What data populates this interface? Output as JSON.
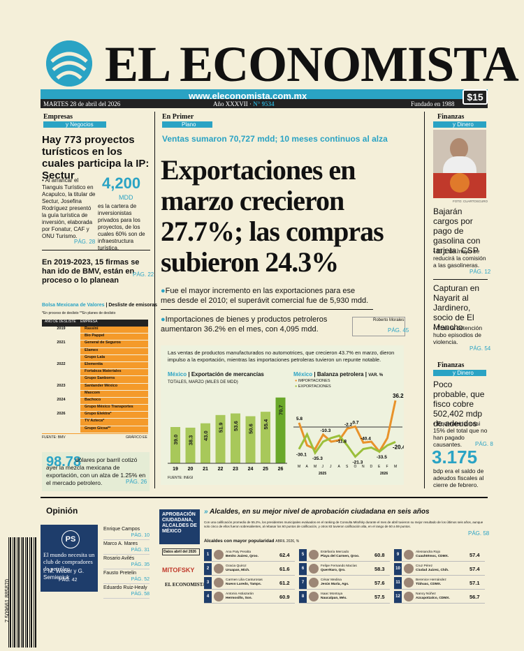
{
  "masthead": {
    "title": "EL ECONOMISTA",
    "url": "www.eleconomista.com.mx",
    "date": "MARTES 28 de abril del 2026",
    "issue_label": "Año XXXVII",
    "issue_number": "N° 9534",
    "founded": "Fundado en 1988",
    "price": "$15"
  },
  "left": {
    "section": "Empresas",
    "section_tag": "y Negocios",
    "headline": "Hay 773 proyectos turísticos en los cuales participa la IP: Sectur",
    "body": "Al arrancar el Tianguis Turístico en Acapulco, la titular de Sectur, Josefina Rodríguez presentó la guía turística de inversión, elaborada por Fonatur, CAF y ONU Turismo.",
    "big_number": "4,200",
    "big_unit": "MDD",
    "number_text": "es la cartera de inversionistas privados para los proyectos, de los cuales 60% son de infraestructura turística.",
    "page1": "PÁG. 28",
    "headline2": "En 2019-2023, 15 firmas se han ido de BMV, están en proceso o lo planean",
    "page2": "PÁG. 22",
    "table_title": "Bolsa Mexicana de Valores",
    "table_sub": "Desliste de emisoras",
    "table_note": "*En proceso de deslisto **En planes de deslisto",
    "col_year": "AÑO DE DESLISTE",
    "col_company": "EMPRESA",
    "years": [
      "2019",
      "2021",
      "2022",
      "2023",
      "2024",
      "2026"
    ],
    "companies": [
      "Rassini",
      "Bio Pappel",
      "General de Seguros",
      "Elamex",
      "Grupo Lala",
      "Elementia",
      "Fortaleza Materiales",
      "Grupo Sanborns",
      "Santander México",
      "Maxcom",
      "Bachoco",
      "Grupo México Transportes",
      "Grupo Elektra*",
      "TV Azteca*",
      "Grupo Gicsa**"
    ],
    "source": "FUENTE: BMV",
    "graphic": "GRÁFICO EE",
    "oil_number": "98.78",
    "oil_text": "dólares por barril cotizó ayer la mezcla mexicana de exportación, con un alza de 1.25% en el mercado petrolero.",
    "page3": "PÁG. 26"
  },
  "center": {
    "section": "En Primer",
    "section_tag": "Plano",
    "kicker": "Ventas sumaron 70,727 mdd; 10 meses continuos al alza",
    "headline": "Exportaciones en marzo crecieron 27.7%; las compras subieron 24.3%",
    "bullet1": "Fue el mayor incremento en las exportaciones para ese mes desde el 2010; el superávit comercial fue de 5,930 mdd.",
    "bullet2": "Importaciones de bienes y productos petroleros aumentaron 36.2% en el mes, con 4,095 mdd.",
    "byline": "Roberto Morales",
    "page": "PÁG. 45",
    "chart_intro": "Las ventas de productos manufacturados no automotrices, que crecieron 43.7% en marzo, dieron impulso a la exportación, mientras las importaciones petroleras tuvieron un repunte notable."
  },
  "chart_data": [
    {
      "type": "bar",
      "title": "Exportación de mercancías",
      "title_prefix": "México",
      "subtitle": "TOTALES, MARZO (MILES DE MDD)",
      "categories": [
        "19",
        "20",
        "21",
        "22",
        "23",
        "24",
        "25",
        "26"
      ],
      "values": [
        39.0,
        38.3,
        43.0,
        51.9,
        53.6,
        50.6,
        55.4,
        70.7
      ],
      "value_labels": [
        "39.0",
        "38.3",
        "43.0",
        "51.9",
        "53.6",
        "50.6",
        "55.4",
        "70.7"
      ],
      "source": "FUENTE: INEGI"
    },
    {
      "type": "line",
      "title": "Balanza petrolera",
      "title_prefix": "México",
      "subtitle": "VAR. %",
      "x": [
        "M",
        "A",
        "M",
        "J",
        "J",
        "A",
        "S",
        "O",
        "N",
        "D",
        "E",
        "F",
        "M"
      ],
      "year_labels": [
        "2025",
        "2026"
      ],
      "series": [
        {
          "name": "IMPORTACIONES",
          "color": "#e8922a",
          "values": [
            5.8,
            -25,
            -30,
            -10.3,
            -20,
            -18,
            -2.2,
            0.7,
            -21.3,
            -20,
            -33.5,
            -15,
            36.2
          ]
        },
        {
          "name": "EXPORTACIONES",
          "color": "#9bbf3a",
          "values": [
            -30.1,
            -10,
            -35.3,
            -20,
            -15,
            -11.8,
            -25,
            -40.4,
            -30,
            -28,
            -33.5,
            -25,
            -20.4
          ]
        }
      ],
      "labels": [
        "5.8",
        "-30.1",
        "-35.3",
        "-10.3",
        "-11.8",
        "-2.2",
        "0.7",
        "-40.4",
        "-21.3",
        "-33.5",
        "36.2",
        "-20.4"
      ]
    }
  ],
  "right": {
    "section": "Finanzas",
    "section_tag": "y Dinero",
    "photo_credit": "FOTO: CUARTOSCURO",
    "headline1": "Bajarán cargos por pago de gasolina con tarjeta: CSP",
    "body1": "El 1 de mayo se reducirá la comisión a las gasolineras.",
    "page1": "PÁG. 12",
    "headline2": "Capturan en Nayarit al Jardinero, socio de El Mencho",
    "body2": "Tras la detención hubo episodios de violencia.",
    "page2": "PÁG. 54",
    "section2": "Finanzas",
    "section2_tag": "y Dinero",
    "headline3": "Poco probable, que fisco cobre 502,402 mdp de adeudos",
    "body3": "Equivalen a casi 15% del total que no han pagado causantes.",
    "page3": "PÁG. 8",
    "big_number": "3.175",
    "number_text": "bdp era el saldo de adeudos fiscales al cierre de febrero."
  },
  "opinion": {
    "title": "Opinión",
    "box_text": "El mundo necesita un club de compradores de petróleo",
    "box_author": "I. M. Weber y G. Semieniuk",
    "box_page": "PÁG. 42",
    "columnists": [
      {
        "name": "Enrique Campos",
        "page": "PÁG. 10"
      },
      {
        "name": "Marco A. Mares",
        "page": "PÁG. 31"
      },
      {
        "name": "Rosario Avilés",
        "page": "PÁG. 35"
      },
      {
        "name": "Fausto Pretelin",
        "page": "PÁG. 52"
      },
      {
        "name": "Eduardo Ruiz-Healy",
        "page": "PÁG. 58"
      }
    ],
    "barcode": "7 509661 885870"
  },
  "bottom": {
    "side_title": "APROBACIÓN CIUDADANA, ALCALDES DE MÉXICO",
    "side_date": "Datos abril del 2026",
    "brand1": "MITOFSKY",
    "brand2": "EL ECONOMISTA",
    "headline_italic": "Alcaldes, en su mejor nivel de aprobación ciudadana en seis años",
    "intro": "Con una calificación promedio de 55.2%, los presidentes municipales evaluados en el ranking de Consulta Mitofsky durante el mes de abril tuvieron su mejor resultado de los últimos seis años, aunque solo cinco de ellos fueron sobresalientes, al rebasar los 60 puntos de calificación, y otros 83 tuvieron calificación alta, en el rango de 50 a 59 puntos.",
    "page": "PÁG. 58",
    "table_title": "Alcaldes con mayor popularidad",
    "table_sub": "ABRIL 2026, %",
    "mayors": [
      {
        "rank": "1",
        "name": "Ana Paty Peralta",
        "city": "Benito Juárez, Qroo.",
        "score": "62.4"
      },
      {
        "rank": "2",
        "name": "Gracia Quiroz",
        "city": "Uruapan, Mich.",
        "score": "61.6"
      },
      {
        "rank": "3",
        "name": "Carmen Lilia Canturosas",
        "city": "Nuevo Laredo, Tamps.",
        "score": "61.2"
      },
      {
        "rank": "4",
        "name": "Antonio Astiazarán",
        "city": "Hermosillo, Son.",
        "score": "60.9"
      },
      {
        "rank": "5",
        "name": "Estefanía Mercado",
        "city": "Playa del Carmen, Qroo.",
        "score": "60.8"
      },
      {
        "rank": "6",
        "name": "Felipe Fernando Macías",
        "city": "Querétaro, Qro.",
        "score": "58.3"
      },
      {
        "rank": "7",
        "name": "César Medina",
        "city": "Jesús María, Ags.",
        "score": "57.6"
      },
      {
        "rank": "8",
        "name": "Isaac Montoya",
        "city": "Naucalpan, Méx.",
        "score": "57.5"
      },
      {
        "rank": "9",
        "name": "Alessandra Rojo",
        "city": "Cuauhtémoc, CDMX.",
        "score": "57.4"
      },
      {
        "rank": "10",
        "name": "Cruz Pérez",
        "city": "Ciudad Juárez, Chih.",
        "score": "57.4"
      },
      {
        "rank": "11",
        "name": "Berenice Hernández",
        "city": "Tláhuac, CDMX.",
        "score": "57.1"
      },
      {
        "rank": "12",
        "name": "Nancy Núñez",
        "city": "Azcapotzalco, CDMX.",
        "score": "56.7"
      }
    ]
  }
}
